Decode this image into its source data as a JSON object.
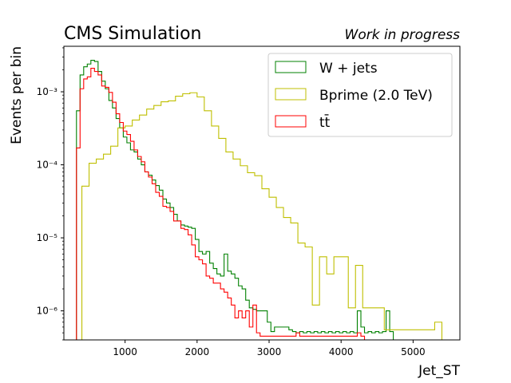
{
  "chart_data": {
    "type": "histogram",
    "title_left": "CMS Simulation",
    "title_right": "Work in progress",
    "xlabel": "Jet_ST",
    "ylabel": "Events per bin",
    "xlim": [
      150,
      5650
    ],
    "ylim": [
      4e-07,
      0.0042
    ],
    "yscale": "log",
    "x_ticks": [
      1000,
      2000,
      3000,
      4000,
      5000
    ],
    "x_tick_labels": [
      "1000",
      "2000",
      "3000",
      "4000",
      "5000"
    ],
    "y_ticks": [
      1e-06,
      1e-05,
      0.0001,
      0.001
    ],
    "y_tick_labels": [
      "10⁻⁶",
      "10⁻⁵",
      "10⁻⁴",
      "10⁻³"
    ],
    "legend_position": "top-right",
    "bin_edges_start": 250,
    "bin_width": 100,
    "series": [
      {
        "name": "W + jets",
        "color": "#008000",
        "values": [
          0,
          0,
          0,
          0,
          0,
          0,
          0,
          0,
          0,
          0,
          0,
          0
        ]
      }
    ],
    "hist_bin_width": 100,
    "hists": [
      {
        "name": "W + jets",
        "color": "#008000",
        "bins": [
          [
            350,
            0.00055
          ],
          [
            400,
            0.0017
          ],
          [
            450,
            0.0022
          ],
          [
            500,
            0.0024
          ],
          [
            550,
            0.0027
          ],
          [
            600,
            0.0026
          ],
          [
            650,
            0.0019
          ],
          [
            700,
            0.0014
          ],
          [
            750,
            0.0011
          ],
          [
            800,
            0.00076
          ],
          [
            850,
            0.0006
          ],
          [
            900,
            0.00043
          ],
          [
            950,
            0.00032
          ],
          [
            1000,
            0.00024
          ],
          [
            1050,
            0.0002
          ],
          [
            1100,
            0.00016
          ],
          [
            1150,
            0.00015
          ],
          [
            1200,
            0.00012
          ],
          [
            1250,
            0.0001
          ],
          [
            1300,
            8e-05
          ],
          [
            1350,
            7.2e-05
          ],
          [
            1400,
            6.2e-05
          ],
          [
            1450,
            5.2e-05
          ],
          [
            1500,
            4.5e-05
          ],
          [
            1550,
            3.4e-05
          ],
          [
            1600,
            3e-05
          ],
          [
            1650,
            2.6e-05
          ],
          [
            1700,
            2.1e-05
          ],
          [
            1750,
            1.7e-05
          ],
          [
            1800,
            1.5e-05
          ],
          [
            1850,
            1.45e-05
          ],
          [
            1900,
            1.4e-05
          ],
          [
            1950,
            1.35e-05
          ],
          [
            2000,
            9.5e-06
          ],
          [
            2050,
            6.5e-06
          ],
          [
            2100,
            6e-06
          ],
          [
            2150,
            6.5e-06
          ],
          [
            2200,
            4.5e-06
          ],
          [
            2250,
            3.8e-06
          ],
          [
            2300,
            3.2e-06
          ],
          [
            2350,
            3e-06
          ],
          [
            2400,
            6e-06
          ],
          [
            2450,
            3.5e-06
          ],
          [
            2500,
            3.2e-06
          ],
          [
            2550,
            2.8e-06
          ],
          [
            2600,
            2.2e-06
          ],
          [
            2650,
            2e-06
          ],
          [
            2700,
            1.4e-06
          ],
          [
            2750,
            1.1e-06
          ],
          [
            2800,
            1.05e-06
          ],
          [
            2850,
            1e-06
          ],
          [
            2900,
            1e-06
          ],
          [
            2950,
            1e-06
          ],
          [
            3000,
            7e-07
          ],
          [
            3050,
            5.2e-07
          ],
          [
            3100,
            6e-07
          ],
          [
            3150,
            6e-07
          ],
          [
            3200,
            6e-07
          ],
          [
            3250,
            6e-07
          ],
          [
            3300,
            5.5e-07
          ],
          [
            3350,
            5.2e-07
          ],
          [
            3400,
            5e-07
          ],
          [
            3450,
            5.2e-07
          ],
          [
            3500,
            5e-07
          ],
          [
            3550,
            5.2e-07
          ],
          [
            3600,
            5e-07
          ],
          [
            3650,
            5.2e-07
          ],
          [
            3700,
            5e-07
          ],
          [
            3750,
            5.2e-07
          ],
          [
            3800,
            5e-07
          ],
          [
            3850,
            5.2e-07
          ],
          [
            3900,
            5e-07
          ],
          [
            3950,
            5.2e-07
          ],
          [
            4000,
            5e-07
          ],
          [
            4050,
            5.2e-07
          ],
          [
            4100,
            5e-07
          ],
          [
            4150,
            5.2e-07
          ],
          [
            4200,
            5e-07
          ],
          [
            4250,
            1e-06
          ],
          [
            4300,
            6e-07
          ],
          [
            4350,
            5e-07
          ],
          [
            4400,
            5.2e-07
          ],
          [
            4450,
            5e-07
          ],
          [
            4500,
            5.2e-07
          ],
          [
            4550,
            5e-07
          ],
          [
            4600,
            5.2e-07
          ],
          [
            4650,
            1e-06
          ],
          [
            4700,
            5.2e-07
          ]
        ]
      },
      {
        "name": "Bprime (2.0 TeV)",
        "color": "#bfbf00",
        "bins": [
          [
            450,
            5.1e-05
          ],
          [
            550,
            0.000105
          ],
          [
            650,
            0.00012
          ],
          [
            750,
            0.00014
          ],
          [
            850,
            0.00018
          ],
          [
            950,
            0.00032
          ],
          [
            1050,
            0.00034
          ],
          [
            1150,
            0.00041
          ],
          [
            1250,
            0.00048
          ],
          [
            1350,
            0.00058
          ],
          [
            1450,
            0.00065
          ],
          [
            1550,
            0.00073
          ],
          [
            1650,
            0.00075
          ],
          [
            1750,
            0.00087
          ],
          [
            1850,
            0.00094
          ],
          [
            1950,
            0.00097
          ],
          [
            2050,
            0.00085
          ],
          [
            2150,
            0.00055
          ],
          [
            2250,
            0.00034
          ],
          [
            2350,
            0.00023
          ],
          [
            2450,
            0.00015
          ],
          [
            2550,
            0.00012
          ],
          [
            2650,
            9.7e-05
          ],
          [
            2750,
            7.8e-05
          ],
          [
            2850,
            7.1e-05
          ],
          [
            2950,
            4.7e-05
          ],
          [
            3050,
            3.6e-05
          ],
          [
            3150,
            2.6e-05
          ],
          [
            3250,
            1.9e-05
          ],
          [
            3350,
            1.6e-05
          ],
          [
            3450,
            8.5e-06
          ],
          [
            3550,
            7.5e-06
          ],
          [
            3650,
            1.2e-06
          ],
          [
            3750,
            5.5e-06
          ],
          [
            3850,
            3.2e-06
          ],
          [
            3950,
            5.5e-06
          ],
          [
            4050,
            5.5e-06
          ],
          [
            4150,
            1.1e-06
          ],
          [
            4250,
            4.2e-06
          ],
          [
            4350,
            1.1e-06
          ],
          [
            4450,
            1.1e-06
          ],
          [
            4550,
            1.1e-06
          ],
          [
            4650,
            5.5e-07
          ],
          [
            4750,
            5.5e-07
          ],
          [
            4850,
            5.5e-07
          ],
          [
            4950,
            5.5e-07
          ],
          [
            5050,
            5.5e-07
          ],
          [
            5150,
            5.5e-07
          ],
          [
            5250,
            5.5e-07
          ],
          [
            5350,
            7e-07
          ]
        ]
      },
      {
        "name": "tt̄",
        "color": "#ff0000",
        "bins": [
          [
            350,
            0.00017
          ],
          [
            400,
            0.0011
          ],
          [
            450,
            0.0015
          ],
          [
            500,
            0.0016
          ],
          [
            550,
            0.0021
          ],
          [
            600,
            0.0019
          ],
          [
            650,
            0.0017
          ],
          [
            700,
            0.0012
          ],
          [
            750,
            0.00115
          ],
          [
            800,
            0.00098
          ],
          [
            850,
            0.00072
          ],
          [
            900,
            0.0005
          ],
          [
            950,
            0.00038
          ],
          [
            1000,
            0.00029
          ],
          [
            1050,
            0.00026
          ],
          [
            1100,
            0.00021
          ],
          [
            1150,
            0.00016
          ],
          [
            1200,
            0.00013
          ],
          [
            1250,
            0.00011
          ],
          [
            1300,
            8e-05
          ],
          [
            1350,
            6.8e-05
          ],
          [
            1400,
            5.5e-05
          ],
          [
            1450,
            4.2e-05
          ],
          [
            1500,
            3.7e-05
          ],
          [
            1550,
            2.7e-05
          ],
          [
            1600,
            2.6e-05
          ],
          [
            1650,
            2.3e-05
          ],
          [
            1700,
            1.7e-05
          ],
          [
            1750,
            1.7e-05
          ],
          [
            1800,
            1.35e-05
          ],
          [
            1850,
            1.3e-05
          ],
          [
            1900,
            1.1e-05
          ],
          [
            1950,
            8e-06
          ],
          [
            2000,
            5.5e-06
          ],
          [
            2050,
            5e-06
          ],
          [
            2100,
            4.4e-06
          ],
          [
            2150,
            3e-06
          ],
          [
            2200,
            2.8e-06
          ],
          [
            2250,
            2.4e-06
          ],
          [
            2300,
            2.4e-06
          ],
          [
            2350,
            2e-06
          ],
          [
            2400,
            1.8e-06
          ],
          [
            2450,
            1.5e-06
          ],
          [
            2500,
            1.2e-06
          ],
          [
            2550,
            8e-07
          ],
          [
            2600,
            1e-06
          ],
          [
            2650,
            8e-07
          ],
          [
            2700,
            1e-06
          ],
          [
            2750,
            6e-07
          ],
          [
            2800,
            1.2e-06
          ],
          [
            2850,
            5e-07
          ],
          [
            2900,
            4.5e-07
          ],
          [
            2950,
            4.5e-07
          ],
          [
            3000,
            4.5e-07
          ],
          [
            3050,
            4.5e-07
          ],
          [
            3100,
            4.5e-07
          ],
          [
            3150,
            4.5e-07
          ],
          [
            3200,
            4.5e-07
          ],
          [
            3250,
            4.5e-07
          ],
          [
            3300,
            4.5e-07
          ],
          [
            3350,
            4.5e-07
          ],
          [
            3400,
            5e-07
          ],
          [
            3450,
            4.5e-07
          ],
          [
            3500,
            4.5e-07
          ],
          [
            3550,
            4.5e-07
          ],
          [
            3600,
            4.5e-07
          ],
          [
            3650,
            4.5e-07
          ],
          [
            3700,
            4.5e-07
          ],
          [
            3750,
            4.5e-07
          ],
          [
            3800,
            4.5e-07
          ],
          [
            3850,
            4.5e-07
          ],
          [
            3900,
            4.5e-07
          ],
          [
            3950,
            4.5e-07
          ],
          [
            4000,
            4.5e-07
          ],
          [
            4050,
            4.5e-07
          ],
          [
            4100,
            4.5e-07
          ],
          [
            4150,
            4.5e-07
          ],
          [
            4200,
            4.5e-07
          ],
          [
            4250,
            5e-07
          ],
          [
            4300,
            4.5e-07
          ]
        ]
      }
    ]
  }
}
